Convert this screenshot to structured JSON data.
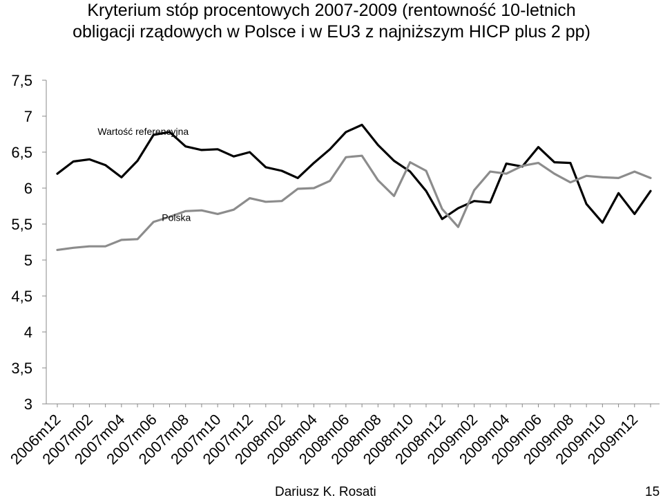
{
  "title": {
    "line1": "Kryterium stóp procentowych 2007-2009 (rentowność 10-letnich",
    "line2": "obligacji rządowych w Polsce i w EU3 z najniższym HICP plus 2 pp)"
  },
  "footer": {
    "author": "Dariusz K. Rosati",
    "page": "15"
  },
  "chart_data": {
    "type": "line",
    "ylim": [
      3,
      7.5
    ],
    "yticks": [
      "7,5",
      "7",
      "6,5",
      "6",
      "5,5",
      "5",
      "4,5",
      "4",
      "3,5",
      "3"
    ],
    "ytick_values": [
      7.5,
      7,
      6.5,
      6,
      5.5,
      5,
      4.5,
      4,
      3.5,
      3
    ],
    "x": [
      "2006m12",
      "2007m01",
      "2007m02",
      "2007m03",
      "2007m04",
      "2007m05",
      "2007m06",
      "2007m07",
      "2007m08",
      "2007m09",
      "2007m10",
      "2007m11",
      "2007m12",
      "2008m01",
      "2008m02",
      "2008m03",
      "2008m04",
      "2008m05",
      "2008m06",
      "2008m07",
      "2008m08",
      "2008m09",
      "2008m10",
      "2008m11",
      "2008m12",
      "2009m01",
      "2009m02",
      "2009m03",
      "2009m04",
      "2009m05",
      "2009m06",
      "2009m07",
      "2009m08",
      "2009m09",
      "2009m10",
      "2009m11",
      "2009m12",
      "2010m01"
    ],
    "xtick_labels": [
      "2006m12",
      "2007m02",
      "2007m04",
      "2007m06",
      "2007m08",
      "2007m10",
      "2007m12",
      "2008m02",
      "2008m04",
      "2008m06",
      "2008m08",
      "2008m10",
      "2008m12",
      "2009m02",
      "2009m04",
      "2009m06",
      "2009m08",
      "2009m10",
      "2009m12"
    ],
    "series": [
      {
        "name": "Wartość referencyjna",
        "color": "#000000",
        "values": [
          6.2,
          6.37,
          6.4,
          6.32,
          6.15,
          6.38,
          6.74,
          6.78,
          6.58,
          6.53,
          6.54,
          6.44,
          6.5,
          6.29,
          6.24,
          6.14,
          6.35,
          6.54,
          6.78,
          6.88,
          6.6,
          6.38,
          6.23,
          5.96,
          5.57,
          5.72,
          5.82,
          5.8,
          6.34,
          6.3,
          6.57,
          6.36,
          6.35,
          5.78,
          5.52,
          5.93,
          5.64,
          5.96
        ]
      },
      {
        "name": "Polska",
        "color": "#8c8c8c",
        "values": [
          5.14,
          5.17,
          5.19,
          5.19,
          5.28,
          5.29,
          5.53,
          5.6,
          5.68,
          5.69,
          5.64,
          5.7,
          5.86,
          5.81,
          5.82,
          5.99,
          6.0,
          6.1,
          6.43,
          6.45,
          6.11,
          5.89,
          6.36,
          6.24,
          5.71,
          5.46,
          5.97,
          6.23,
          6.2,
          6.31,
          6.35,
          6.2,
          6.08,
          6.17,
          6.15,
          6.14,
          6.23,
          6.14
        ]
      }
    ],
    "annotations": [
      {
        "text": "Wartość referencyjna",
        "x": "2007m02",
        "y": 6.8
      },
      {
        "text": "Polska",
        "x": "2007m06",
        "y": 5.6
      }
    ],
    "grid": false,
    "legend": "none"
  }
}
